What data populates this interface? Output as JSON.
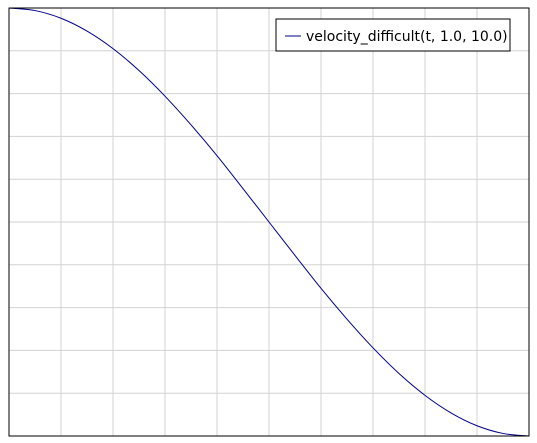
{
  "colors": {
    "background": "#ffffff",
    "grid": "#d3d3d3",
    "axes": "#000000",
    "series": "#00008b",
    "legend_border": "#000000"
  },
  "chart_data": {
    "type": "line",
    "title": "",
    "xlabel": "",
    "ylabel": "",
    "xlim": [
      0,
      10
    ],
    "ylim": [
      0,
      1
    ],
    "grid": true,
    "legend_position": "top-right",
    "series": [
      {
        "name": "velocity_difficult(t, 1.0, 10.0)",
        "color": "#00008b",
        "x": [
          0.0,
          0.5,
          1.0,
          1.5,
          2.0,
          2.5,
          3.0,
          3.5,
          4.0,
          4.5,
          5.0,
          5.5,
          6.0,
          6.5,
          7.0,
          7.5,
          8.0,
          8.5,
          9.0,
          9.5,
          10.0
        ],
        "y": [
          1.0,
          0.994,
          0.976,
          0.946,
          0.905,
          0.854,
          0.794,
          0.727,
          0.655,
          0.578,
          0.5,
          0.422,
          0.345,
          0.273,
          0.206,
          0.146,
          0.095,
          0.054,
          0.024,
          0.006,
          0.0
        ]
      }
    ]
  }
}
